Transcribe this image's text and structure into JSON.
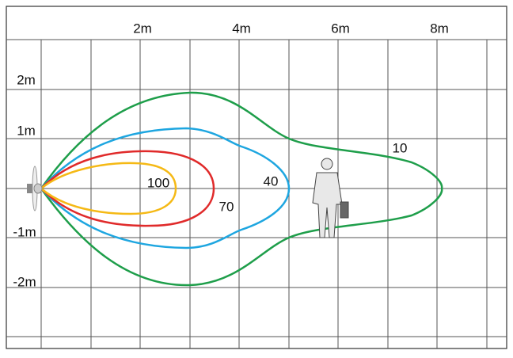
{
  "axes": {
    "x_labels": [
      "2m",
      "4m",
      "6m",
      "8m"
    ],
    "y_labels": [
      "2m",
      "1m",
      "-1m",
      "-2m"
    ]
  },
  "contours": [
    {
      "label": "100"
    },
    {
      "label": "70"
    },
    {
      "label": "40"
    },
    {
      "label": "10"
    }
  ]
}
